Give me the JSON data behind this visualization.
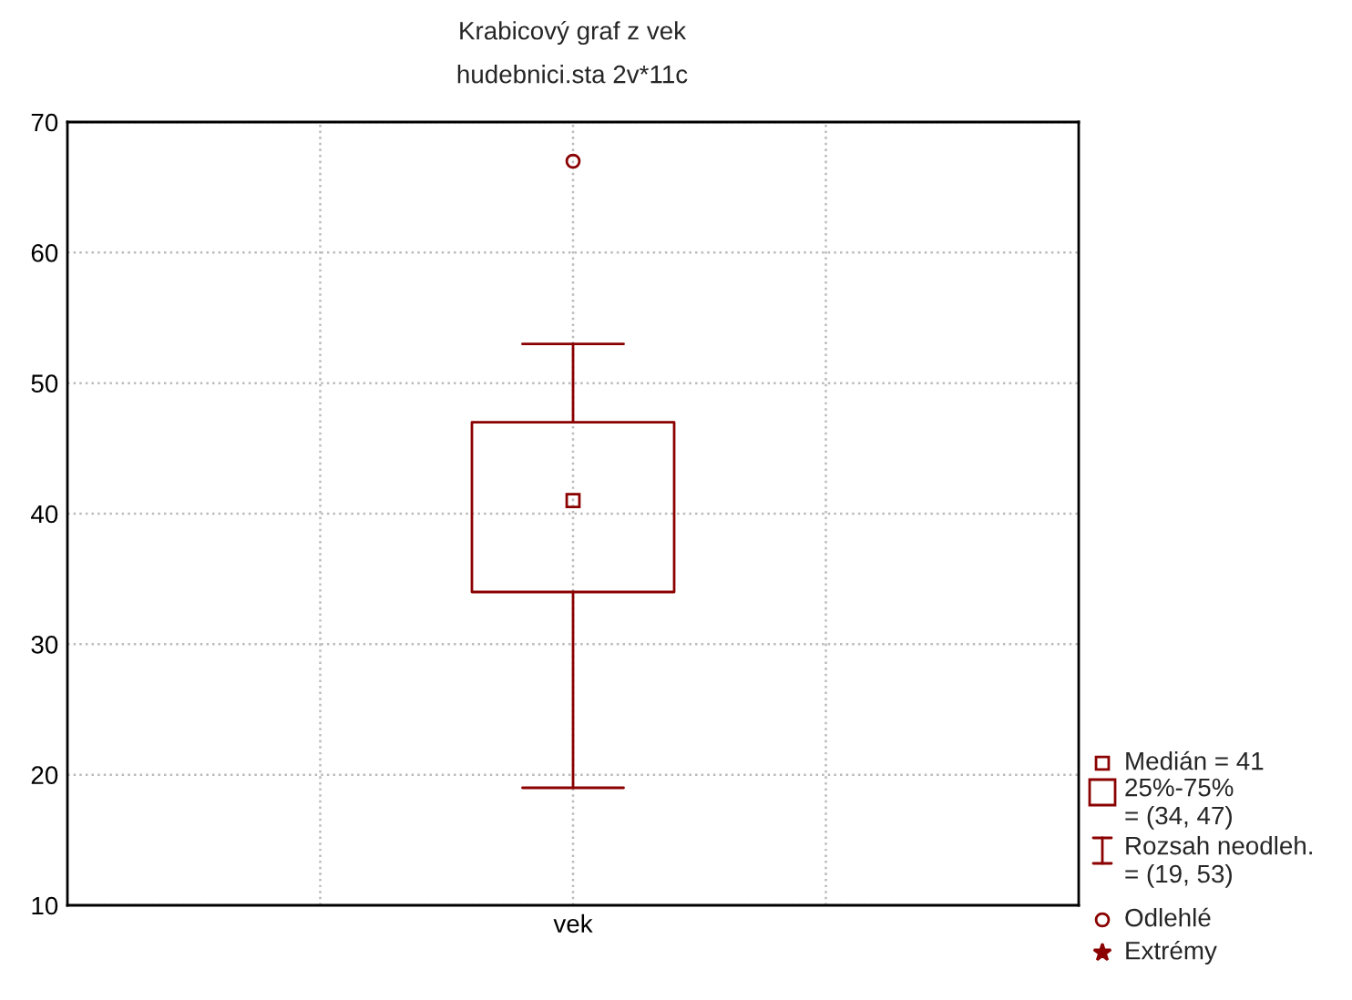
{
  "chart_data": {
    "type": "box",
    "title": "Krabicový graf z vek",
    "subtitle": "hudebnici.sta 2v*11c",
    "categories": [
      "vek"
    ],
    "boxes": [
      {
        "low": 19,
        "q1": 34,
        "median": 41,
        "q3": 47,
        "high": 53,
        "outliers": [
          67
        ]
      }
    ],
    "color": "#8b0000",
    "ylim": [
      10,
      70
    ],
    "yticks": [
      10,
      20,
      30,
      40,
      50,
      60,
      70
    ],
    "grid": true,
    "annotations": [
      "Medián = 41",
      "25%-75%\n= (34, 47)",
      "Rozsah neodleh.\n= (19, 53)",
      "Odlehlé",
      "Extrémy"
    ]
  }
}
